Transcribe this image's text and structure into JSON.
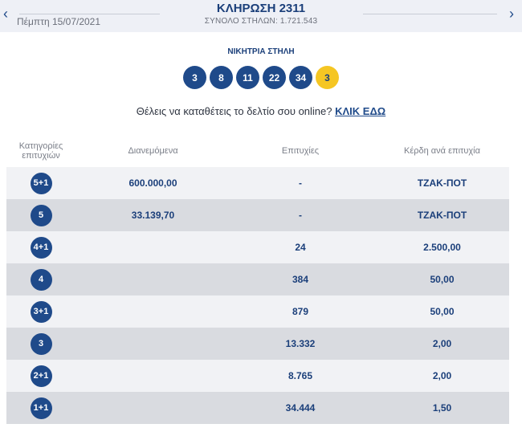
{
  "header": {
    "date": "Πέμπτη 15/07/2021",
    "title": "ΚΛΗΡΩΣΗ 2311",
    "columns": "ΣΥΝΟΛΟ ΣΤΗΛΩΝ: 1.721.543",
    "prev_icon": "chevron-left-icon",
    "next_icon": "chevron-right-icon"
  },
  "winning": {
    "label": "ΝΙΚΗΤΡΙΑ ΣΤΗΛΗ",
    "numbers": [
      "3",
      "8",
      "11",
      "22",
      "34"
    ],
    "joker": "3"
  },
  "online": {
    "text": "Θέλεις να καταθέτεις το δελτίο σου online? ",
    "link": "ΚΛΙΚ ΕΔΩ"
  },
  "table": {
    "headers": [
      "Κατηγορίες επιτυχιών",
      "Διανεμόμενα",
      "Επιτυχίες",
      "Κέρδη ανά επιτυχία"
    ],
    "rows": [
      {
        "category": "5+1",
        "distributed": "600.000,00",
        "winners": "-",
        "prize": "ΤΖΑΚ-ΠΟΤ"
      },
      {
        "category": "5",
        "distributed": "33.139,70",
        "winners": "-",
        "prize": "ΤΖΑΚ-ΠΟΤ"
      },
      {
        "category": "4+1",
        "distributed": "",
        "winners": "24",
        "prize": "2.500,00"
      },
      {
        "category": "4",
        "distributed": "",
        "winners": "384",
        "prize": "50,00"
      },
      {
        "category": "3+1",
        "distributed": "",
        "winners": "879",
        "prize": "50,00"
      },
      {
        "category": "3",
        "distributed": "",
        "winners": "13.332",
        "prize": "2,00"
      },
      {
        "category": "2+1",
        "distributed": "",
        "winners": "8.765",
        "prize": "2,00"
      },
      {
        "category": "1+1",
        "distributed": "",
        "winners": "34.444",
        "prize": "1,50"
      }
    ]
  },
  "colors": {
    "primary": "#1f4a8a",
    "joker": "#f5c623",
    "row_light": "#f1f2f5",
    "row_dark": "#d9dbe0"
  }
}
